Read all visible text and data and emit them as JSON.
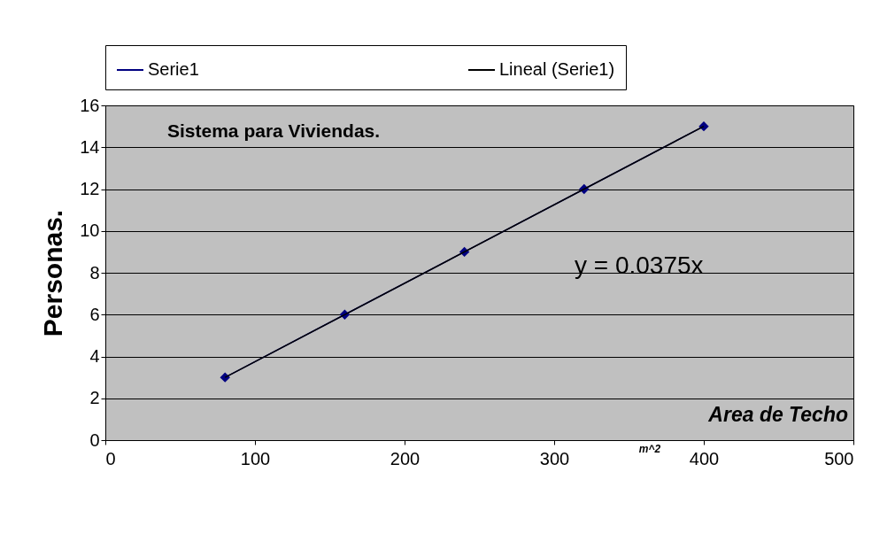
{
  "chart_data": {
    "type": "line",
    "title": "Sistema para Viviendas.",
    "xlabel": "Area de Techo",
    "ylabel": "Personas.",
    "x": [
      80,
      160,
      240,
      320,
      400
    ],
    "series": [
      {
        "name": "Serie1",
        "color": "#000080",
        "marker": "diamond",
        "values": [
          3,
          6,
          9,
          12,
          15
        ]
      },
      {
        "name": "Lineal (Serie1)",
        "color": "#000000",
        "marker": "none",
        "x": [
          80,
          400
        ],
        "values": [
          3,
          15
        ]
      }
    ],
    "annotations": [
      "y = 0.0375x",
      "m^2"
    ],
    "xlim": [
      0,
      500
    ],
    "xticks": [
      0,
      100,
      200,
      300,
      400,
      500
    ],
    "ylim": [
      0,
      16
    ],
    "yticks": [
      0,
      2,
      4,
      6,
      8,
      10,
      12,
      14,
      16
    ],
    "grid": "y",
    "legend": "top"
  }
}
